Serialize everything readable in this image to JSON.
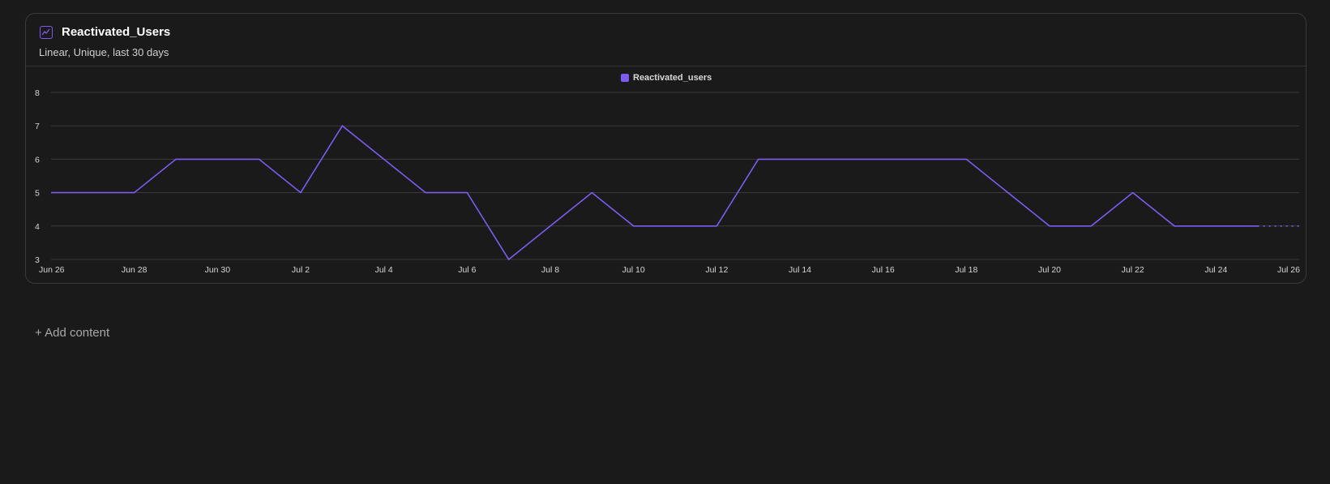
{
  "card": {
    "title": "Reactivated_Users",
    "subtitle": "Linear, Unique, last 30 days",
    "icon": "line-chart-icon"
  },
  "add_content_label": "+ Add content",
  "colors": {
    "accent": "#7b5cf0",
    "background": "#1a1a1a",
    "grid": "#3a3a3a"
  },
  "chart_data": {
    "type": "line",
    "title": "",
    "xlabel": "",
    "ylabel": "",
    "ylim": [
      3,
      8
    ],
    "yticks": [
      3,
      4,
      5,
      6,
      7,
      8
    ],
    "grid": true,
    "legend": "top-center",
    "xticks": [
      "Jun 26",
      "Jun 28",
      "Jun 30",
      "Jul 2",
      "Jul 4",
      "Jul 6",
      "Jul 8",
      "Jul 10",
      "Jul 12",
      "Jul 14",
      "Jul 16",
      "Jul 18",
      "Jul 20",
      "Jul 22",
      "Jul 24",
      "Jul 26"
    ],
    "x": [
      "Jun 26",
      "Jun 27",
      "Jun 28",
      "Jun 29",
      "Jun 30",
      "Jul 1",
      "Jul 2",
      "Jul 3",
      "Jul 4",
      "Jul 5",
      "Jul 6",
      "Jul 7",
      "Jul 8",
      "Jul 9",
      "Jul 10",
      "Jul 11",
      "Jul 12",
      "Jul 13",
      "Jul 14",
      "Jul 15",
      "Jul 16",
      "Jul 17",
      "Jul 18",
      "Jul 19",
      "Jul 20",
      "Jul 21",
      "Jul 22",
      "Jul 23",
      "Jul 24",
      "Jul 25",
      "Jul 26"
    ],
    "series": [
      {
        "name": "Reactivated_users",
        "color": "#7b5cf0",
        "values": [
          5,
          5,
          5,
          6,
          6,
          6,
          5,
          7,
          6,
          5,
          5,
          3,
          4,
          5,
          4,
          4,
          4,
          6,
          6,
          6,
          6,
          6,
          6,
          5,
          4,
          4,
          5,
          4,
          4,
          4,
          4
        ],
        "incomplete_last_points": 1
      }
    ]
  }
}
